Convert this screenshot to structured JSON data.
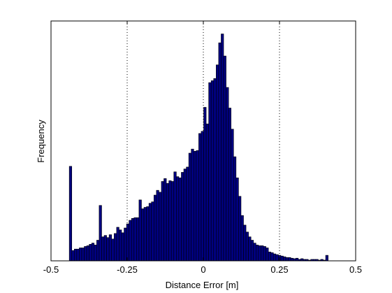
{
  "chart_data": {
    "type": "histogram",
    "title": "",
    "xlabel": "Distance Error [m]",
    "ylabel": "Frequency",
    "xlim": [
      -0.5,
      0.5
    ],
    "ylim": [
      0,
      1
    ],
    "x_ticks": [
      -0.5,
      -0.25,
      0,
      0.25,
      0.5
    ],
    "x_tick_labels": [
      "-0.5",
      "-0.25",
      "0",
      "0.25",
      "0.5"
    ],
    "y_ticks_shown": false,
    "grid": "dotted vertical lines at x = -0.25, 0, 0.25",
    "bar_color": "#000080",
    "bar_edge_color": "#000000",
    "bins": {
      "start": -0.44,
      "width": 0.00817,
      "relative_heights": [
        0.394,
        0.043,
        0.049,
        0.049,
        0.054,
        0.054,
        0.06,
        0.063,
        0.069,
        0.074,
        0.066,
        0.086,
        0.231,
        0.1,
        0.106,
        0.097,
        0.109,
        0.091,
        0.114,
        0.14,
        0.129,
        0.117,
        0.137,
        0.154,
        0.169,
        0.177,
        0.18,
        0.18,
        0.254,
        0.217,
        0.223,
        0.226,
        0.24,
        0.246,
        0.274,
        0.294,
        0.286,
        0.331,
        0.343,
        0.323,
        0.334,
        0.331,
        0.371,
        0.351,
        0.346,
        0.369,
        0.383,
        0.391,
        0.449,
        0.466,
        0.457,
        0.46,
        0.531,
        0.54,
        0.64,
        0.571,
        0.743,
        0.751,
        0.76,
        0.817,
        0.909,
        0.946,
        0.854,
        0.723,
        0.637,
        0.549,
        0.434,
        0.346,
        0.269,
        0.189,
        0.149,
        0.12,
        0.1,
        0.086,
        0.074,
        0.066,
        0.063,
        0.063,
        0.06,
        0.054,
        0.037,
        0.034,
        0.029,
        0.026,
        0.023,
        0.02,
        0.017,
        0.014,
        0.014,
        0.011,
        0.009,
        0.011,
        0.006,
        0.009,
        0.006,
        0.006,
        0.003,
        0.006,
        0.006,
        0.006,
        0.003,
        0.006,
        0.003,
        0.023
      ]
    }
  }
}
